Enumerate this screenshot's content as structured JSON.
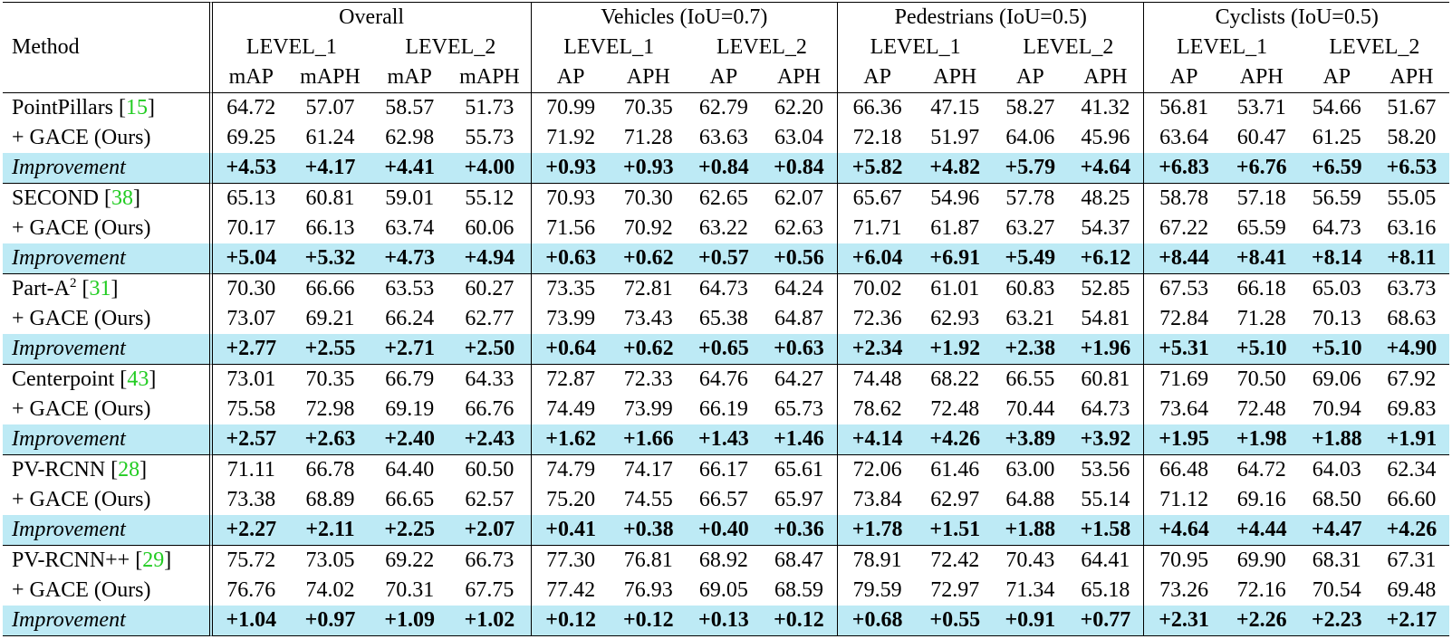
{
  "header": {
    "method_label": "Method",
    "groups": [
      "Overall",
      "Vehicles (IoU=0.7)",
      "Pedestrians (IoU=0.5)",
      "Cyclists (IoU=0.5)"
    ],
    "levels": [
      "LEVEL_1",
      "LEVEL_2",
      "LEVEL_1",
      "LEVEL_2",
      "LEVEL_1",
      "LEVEL_2",
      "LEVEL_1",
      "LEVEL_2"
    ],
    "metrics": [
      "mAP",
      "mAPH",
      "mAP",
      "mAPH",
      "AP",
      "APH",
      "AP",
      "APH",
      "AP",
      "APH",
      "AP",
      "APH",
      "AP",
      "APH",
      "AP",
      "APH"
    ]
  },
  "blocks": [
    {
      "base": {
        "name": "PointPillars [",
        "ref": "15",
        "close": "]",
        "values": [
          "64.72",
          "57.07",
          "58.57",
          "51.73",
          "70.99",
          "70.35",
          "62.79",
          "62.20",
          "66.36",
          "47.15",
          "58.27",
          "41.32",
          "56.81",
          "53.71",
          "54.66",
          "51.67"
        ]
      },
      "ours": {
        "name": "+ GACE (Ours)",
        "values": [
          "69.25",
          "61.24",
          "62.98",
          "55.73",
          "71.92",
          "71.28",
          "63.63",
          "63.04",
          "72.18",
          "51.97",
          "64.06",
          "45.96",
          "63.64",
          "60.47",
          "61.25",
          "58.20"
        ]
      },
      "improvement": {
        "name": "Improvement",
        "values": [
          "+4.53",
          "+4.17",
          "+4.41",
          "+4.00",
          "+0.93",
          "+0.93",
          "+0.84",
          "+0.84",
          "+5.82",
          "+4.82",
          "+5.79",
          "+4.64",
          "+6.83",
          "+6.76",
          "+6.59",
          "+6.53"
        ]
      }
    },
    {
      "base": {
        "name": "SECOND [",
        "ref": "38",
        "close": "]",
        "values": [
          "65.13",
          "60.81",
          "59.01",
          "55.12",
          "70.93",
          "70.30",
          "62.65",
          "62.07",
          "65.67",
          "54.96",
          "57.78",
          "48.25",
          "58.78",
          "57.18",
          "56.59",
          "55.05"
        ]
      },
      "ours": {
        "name": "+ GACE (Ours)",
        "values": [
          "70.17",
          "66.13",
          "63.74",
          "60.06",
          "71.56",
          "70.92",
          "63.22",
          "62.63",
          "71.71",
          "61.87",
          "63.27",
          "54.37",
          "67.22",
          "65.59",
          "64.73",
          "63.16"
        ]
      },
      "improvement": {
        "name": "Improvement",
        "values": [
          "+5.04",
          "+5.32",
          "+4.73",
          "+4.94",
          "+0.63",
          "+0.62",
          "+0.57",
          "+0.56",
          "+6.04",
          "+6.91",
          "+5.49",
          "+6.12",
          "+8.44",
          "+8.41",
          "+8.14",
          "+8.11"
        ]
      }
    },
    {
      "base": {
        "name": "Part-A",
        "sup": "2",
        "name_after": " [",
        "ref": "31",
        "close": "]",
        "values": [
          "70.30",
          "66.66",
          "63.53",
          "60.27",
          "73.35",
          "72.81",
          "64.73",
          "64.24",
          "70.02",
          "61.01",
          "60.83",
          "52.85",
          "67.53",
          "66.18",
          "65.03",
          "63.73"
        ]
      },
      "ours": {
        "name": "+ GACE (Ours)",
        "values": [
          "73.07",
          "69.21",
          "66.24",
          "62.77",
          "73.99",
          "73.43",
          "65.38",
          "64.87",
          "72.36",
          "62.93",
          "63.21",
          "54.81",
          "72.84",
          "71.28",
          "70.13",
          "68.63"
        ]
      },
      "improvement": {
        "name": "Improvement",
        "values": [
          "+2.77",
          "+2.55",
          "+2.71",
          "+2.50",
          "+0.64",
          "+0.62",
          "+0.65",
          "+0.63",
          "+2.34",
          "+1.92",
          "+2.38",
          "+1.96",
          "+5.31",
          "+5.10",
          "+5.10",
          "+4.90"
        ]
      }
    },
    {
      "base": {
        "name": "Centerpoint [",
        "ref": "43",
        "close": "]",
        "values": [
          "73.01",
          "70.35",
          "66.79",
          "64.33",
          "72.87",
          "72.33",
          "64.76",
          "64.27",
          "74.48",
          "68.22",
          "66.55",
          "60.81",
          "71.69",
          "70.50",
          "69.06",
          "67.92"
        ]
      },
      "ours": {
        "name": "+ GACE (Ours)",
        "values": [
          "75.58",
          "72.98",
          "69.19",
          "66.76",
          "74.49",
          "73.99",
          "66.19",
          "65.73",
          "78.62",
          "72.48",
          "70.44",
          "64.73",
          "73.64",
          "72.48",
          "70.94",
          "69.83"
        ]
      },
      "improvement": {
        "name": "Improvement",
        "values": [
          "+2.57",
          "+2.63",
          "+2.40",
          "+2.43",
          "+1.62",
          "+1.66",
          "+1.43",
          "+1.46",
          "+4.14",
          "+4.26",
          "+3.89",
          "+3.92",
          "+1.95",
          "+1.98",
          "+1.88",
          "+1.91"
        ]
      }
    },
    {
      "base": {
        "name": "PV-RCNN [",
        "ref": "28",
        "close": "]",
        "values": [
          "71.11",
          "66.78",
          "64.40",
          "60.50",
          "74.79",
          "74.17",
          "66.17",
          "65.61",
          "72.06",
          "61.46",
          "63.00",
          "53.56",
          "66.48",
          "64.72",
          "64.03",
          "62.34"
        ]
      },
      "ours": {
        "name": "+ GACE (Ours)",
        "values": [
          "73.38",
          "68.89",
          "66.65",
          "62.57",
          "75.20",
          "74.55",
          "66.57",
          "65.97",
          "73.84",
          "62.97",
          "64.88",
          "55.14",
          "71.12",
          "69.16",
          "68.50",
          "66.60"
        ]
      },
      "improvement": {
        "name": "Improvement",
        "values": [
          "+2.27",
          "+2.11",
          "+2.25",
          "+2.07",
          "+0.41",
          "+0.38",
          "+0.40",
          "+0.36",
          "+1.78",
          "+1.51",
          "+1.88",
          "+1.58",
          "+4.64",
          "+4.44",
          "+4.47",
          "+4.26"
        ]
      }
    },
    {
      "base": {
        "name": "PV-RCNN++ [",
        "ref": "29",
        "close": "]",
        "values": [
          "75.72",
          "73.05",
          "69.22",
          "66.73",
          "77.30",
          "76.81",
          "68.92",
          "68.47",
          "78.91",
          "72.42",
          "70.43",
          "64.41",
          "70.95",
          "69.90",
          "68.31",
          "67.31"
        ]
      },
      "ours": {
        "name": "+ GACE (Ours)",
        "values": [
          "76.76",
          "74.02",
          "70.31",
          "67.75",
          "77.42",
          "76.93",
          "69.05",
          "68.59",
          "79.59",
          "72.97",
          "71.34",
          "65.18",
          "73.26",
          "72.16",
          "70.54",
          "69.48"
        ]
      },
      "improvement": {
        "name": "Improvement",
        "values": [
          "+1.04",
          "+0.97",
          "+1.09",
          "+1.02",
          "+0.12",
          "+0.12",
          "+0.13",
          "+0.12",
          "+0.68",
          "+0.55",
          "+0.91",
          "+0.77",
          "+2.31",
          "+2.26",
          "+2.23",
          "+2.17"
        ]
      }
    }
  ],
  "colors": {
    "highlight_row": "#bdeaf5",
    "reference": "#22cc22"
  }
}
